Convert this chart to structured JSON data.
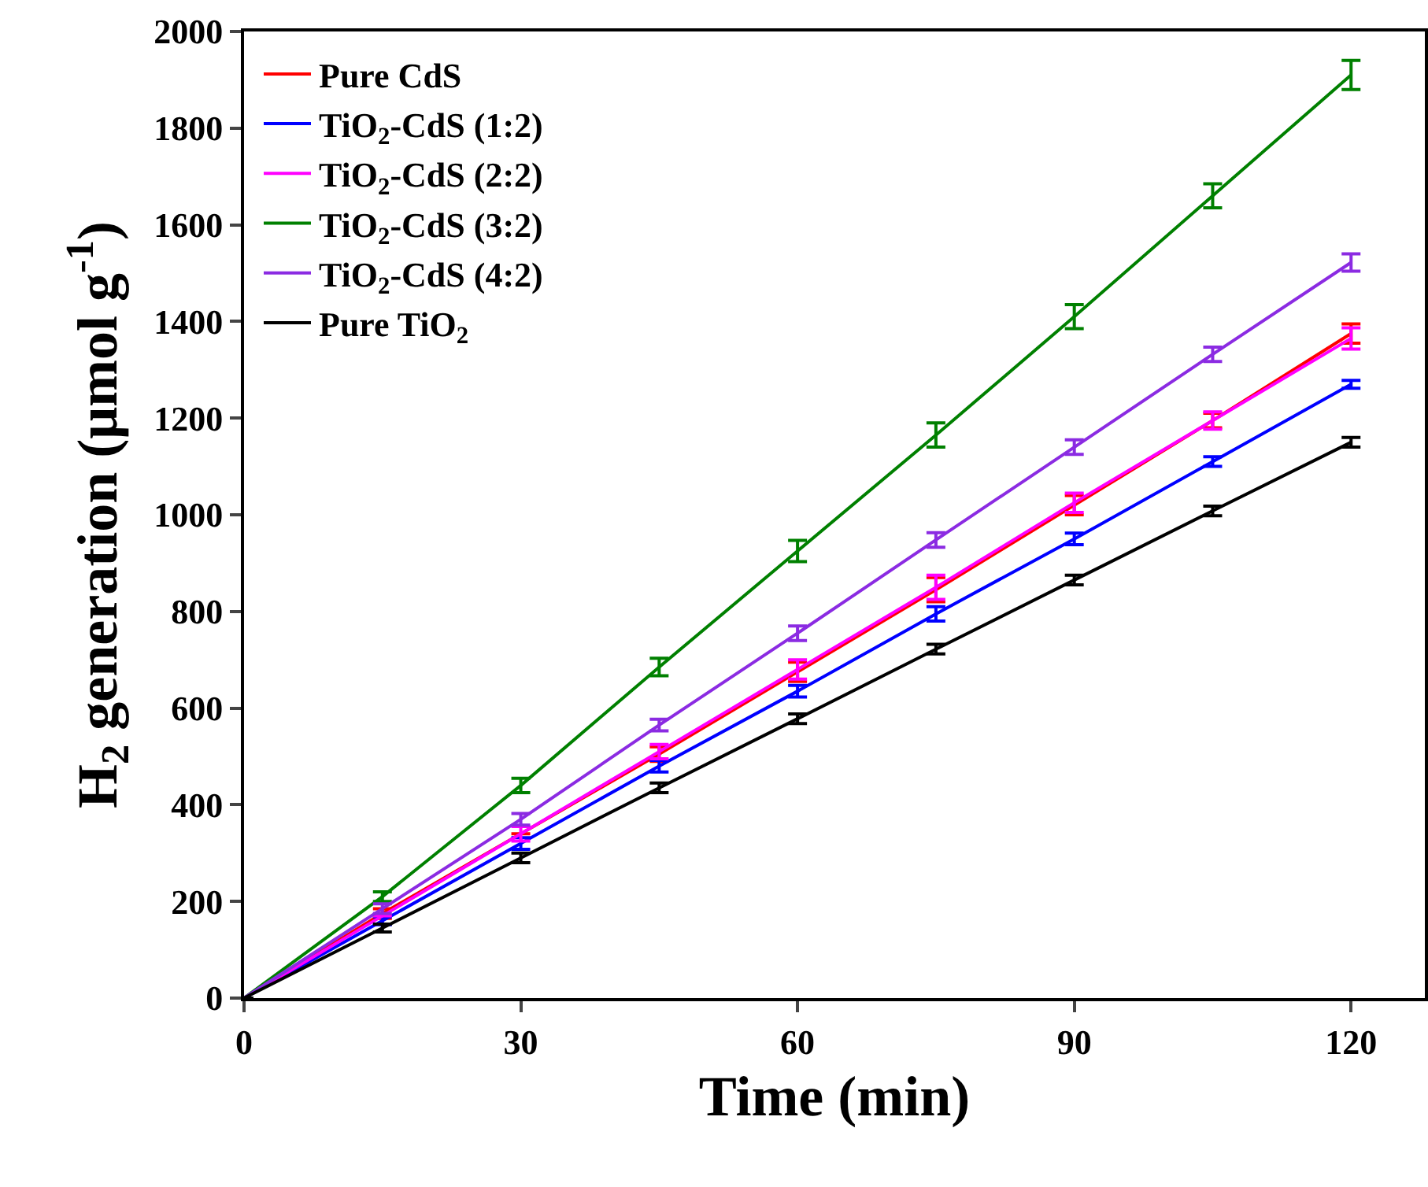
{
  "chart_data": {
    "type": "line",
    "xlabel": "Time (min)",
    "ylabel": "H$_{2}$ generation (μmol g$^{-1}$)",
    "x": [
      0,
      15,
      30,
      45,
      60,
      75,
      90,
      105,
      120
    ],
    "series": [
      {
        "name": "Pure CdS",
        "color": "#ff0000",
        "values": [
          0,
          175,
          340,
          505,
          675,
          845,
          1020,
          1195,
          1375
        ],
        "errors": [
          0,
          10,
          null,
          15,
          20,
          25,
          20,
          15,
          20
        ]
      },
      {
        "name": "TiO$_{2}$-CdS (1:2)",
        "color": "#0000ff",
        "values": [
          0,
          160,
          320,
          480,
          635,
          795,
          950,
          1110,
          1270
        ],
        "errors": [
          0,
          8,
          12,
          12,
          12,
          15,
          12,
          10,
          8
        ]
      },
      {
        "name": "TiO$_{2}$-CdS (2:2)",
        "color": "#ff00ff",
        "values": [
          0,
          170,
          340,
          510,
          680,
          850,
          1025,
          1195,
          1365
        ],
        "errors": [
          0,
          null,
          15,
          15,
          20,
          25,
          20,
          18,
          22
        ]
      },
      {
        "name": "TiO$_{2}$-CdS (3:2)",
        "color": "#008000",
        "values": [
          0,
          210,
          440,
          685,
          925,
          1165,
          1410,
          1660,
          1910
        ],
        "errors": [
          0,
          10,
          15,
          18,
          22,
          25,
          25,
          25,
          30
        ]
      },
      {
        "name": "TiO$_{2}$-CdS (4:2)",
        "color": "#8b2be2",
        "values": [
          0,
          185,
          370,
          565,
          755,
          948,
          1140,
          1332,
          1522
        ],
        "errors": [
          0,
          10,
          12,
          12,
          15,
          15,
          15,
          15,
          18
        ]
      },
      {
        "name": "Pure TiO$_{2}$",
        "color": "#000000",
        "values": [
          0,
          145,
          290,
          435,
          578,
          722,
          865,
          1008,
          1150
        ],
        "errors": [
          0,
          8,
          10,
          10,
          10,
          10,
          10,
          10,
          10
        ]
      }
    ],
    "xlim": [
      0,
      128
    ],
    "xticks": [
      0,
      30,
      60,
      90,
      120
    ],
    "ylim": [
      0,
      2000
    ],
    "yticks": [
      0,
      200,
      400,
      600,
      800,
      1000,
      1200,
      1400,
      1600,
      1800,
      2000
    ],
    "grid": false,
    "legend": "top left",
    "line_style": "solid"
  }
}
